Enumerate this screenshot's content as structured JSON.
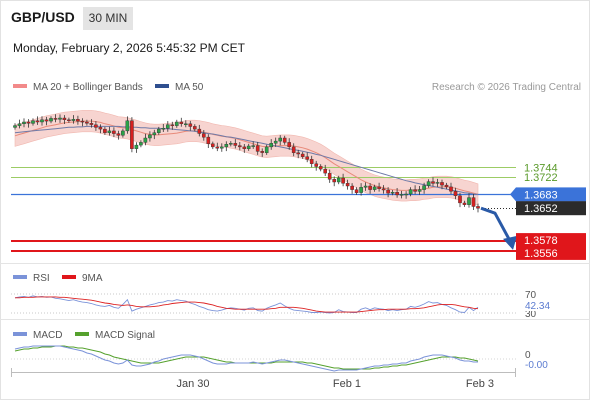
{
  "header": {
    "pair": "GBP/USD",
    "timeframe": "30 MIN",
    "datetime": "Monday, February 2, 2026 5:45:32 PM CET"
  },
  "legend": {
    "ma20": "MA 20 + Bollinger Bands",
    "ma50": "MA 50",
    "credit": "Research © 2026 Trading Central",
    "rsi": "RSI",
    "rsi_ma": "9MA",
    "macd": "MACD",
    "macd_signal": "MACD Signal"
  },
  "colors": {
    "candle_up": "#2aa248",
    "candle_down": "#d62020",
    "bollinger_fill": "#f7d4d0",
    "ma20": "#e88a7a",
    "ma50": "#6e7aa8",
    "resistance": "#9ccc65",
    "pivot": "#3b73d9",
    "support": "#e0161b",
    "last_price": "#2b2b2b",
    "forecast_arrow": "#2a5aa7",
    "rsi_line": "#7b93d9",
    "rsi_ma_line": "#dd2222",
    "macd_line": "#7b93d9",
    "macd_signal_line": "#55a12d"
  },
  "levels": {
    "resistance": [
      "1.3744",
      "1.3722"
    ],
    "pivot": "1.3683",
    "last": "1.3652",
    "support": [
      "1.3578",
      "1.3556"
    ]
  },
  "x_axis": {
    "ticks": [
      "Jan 30",
      "Feb 1",
      "Feb 3"
    ]
  },
  "rsi": {
    "levels": [
      "70",
      "30"
    ],
    "current": "42.34"
  },
  "macd": {
    "zero": "0",
    "current": "-0.00"
  },
  "chart_data": {
    "type": "candlestick",
    "instrument": "GBP/USD",
    "timeframe": "30 MIN",
    "ylim": [
      1.354,
      1.39
    ],
    "closes": [
      1.3838,
      1.3842,
      1.3846,
      1.3843,
      1.3849,
      1.3846,
      1.3851,
      1.3848,
      1.3854,
      1.3852,
      1.3855,
      1.3851,
      1.3849,
      1.3852,
      1.3848,
      1.3846,
      1.3843,
      1.384,
      1.3834,
      1.383,
      1.3822,
      1.3826,
      1.382,
      1.3816,
      1.3826,
      1.3849,
      1.3786,
      1.3794,
      1.38,
      1.381,
      1.3817,
      1.3822,
      1.383,
      1.3832,
      1.384,
      1.3838,
      1.3846,
      1.3842,
      1.3842,
      1.3836,
      1.383,
      1.382,
      1.3812,
      1.3797,
      1.379,
      1.3787,
      1.379,
      1.3796,
      1.3798,
      1.3793,
      1.379,
      1.3786,
      1.3792,
      1.3793,
      1.378,
      1.3777,
      1.379,
      1.3798,
      1.3803,
      1.381,
      1.38,
      1.379,
      1.3777,
      1.3774,
      1.3768,
      1.3762,
      1.3752,
      1.3746,
      1.374,
      1.3731,
      1.3717,
      1.3711,
      1.372,
      1.3708,
      1.3702,
      1.3694,
      1.3687,
      1.3699,
      1.3702,
      1.3694,
      1.37,
      1.3696,
      1.3693,
      1.3686,
      1.3688,
      1.3682,
      1.3683,
      1.3684,
      1.3694,
      1.369,
      1.3694,
      1.3703,
      1.3712,
      1.3708,
      1.371,
      1.3704,
      1.37,
      1.369,
      1.368,
      1.3664,
      1.366,
      1.3676,
      1.3656,
      1.3652
    ],
    "ma20": [
      1.3815,
      1.3818,
      1.3821,
      1.3824,
      1.3827,
      1.383,
      1.3833,
      1.3836,
      1.3838,
      1.384,
      1.3842,
      1.3844,
      1.3845,
      1.3846,
      1.3847,
      1.3848,
      1.3848,
      1.3848,
      1.3847,
      1.3845,
      1.3842,
      1.384,
      1.3837,
      1.3834,
      1.3833,
      1.3832,
      1.3829,
      1.3826,
      1.3823,
      1.382,
      1.3818,
      1.3817,
      1.3817,
      1.3818,
      1.3819,
      1.382,
      1.3821,
      1.3823,
      1.3825,
      1.3826,
      1.3826,
      1.3825,
      1.3823,
      1.3821,
      1.3818,
      1.3816,
      1.3814,
      1.3813,
      1.3811,
      1.3809,
      1.3806,
      1.3803,
      1.38,
      1.3797,
      1.3794,
      1.3791,
      1.379,
      1.3791,
      1.3792,
      1.3793,
      1.3793,
      1.3793,
      1.3792,
      1.379,
      1.3788,
      1.3785,
      1.3781,
      1.3777,
      1.3772,
      1.3766,
      1.3759,
      1.3752,
      1.3746,
      1.374,
      1.3734,
      1.3728,
      1.3722,
      1.3716,
      1.3711,
      1.3707,
      1.3703,
      1.37,
      1.3698,
      1.3696,
      1.3694,
      1.3693,
      1.3692,
      1.3692,
      1.3693,
      1.3693,
      1.3694,
      1.3696,
      1.3697,
      1.3699,
      1.37,
      1.37,
      1.37,
      1.3699,
      1.3697,
      1.3694,
      1.3691,
      1.3689,
      1.3686,
      1.3683
    ],
    "ma50": [
      1.3822,
      1.3823,
      1.3824,
      1.3825,
      1.3826,
      1.3827,
      1.3828,
      1.3829,
      1.383,
      1.3831,
      1.3832,
      1.3833,
      1.3834,
      1.3834,
      1.3835,
      1.3835,
      1.3836,
      1.3836,
      1.3836,
      1.3836,
      1.3836,
      1.3836,
      1.3836,
      1.3836,
      1.3835,
      1.3835,
      1.3834,
      1.3834,
      1.3833,
      1.3833,
      1.3832,
      1.3832,
      1.3832,
      1.3831,
      1.3831,
      1.383,
      1.3829,
      1.3828,
      1.3827,
      1.3826,
      1.3825,
      1.3823,
      1.3822,
      1.382,
      1.3819,
      1.3817,
      1.3815,
      1.3813,
      1.3812,
      1.381,
      1.3808,
      1.3806,
      1.3804,
      1.3802,
      1.38,
      1.3798,
      1.3796,
      1.3794,
      1.3792,
      1.379,
      1.3788,
      1.3786,
      1.3784,
      1.3782,
      1.378,
      1.3778,
      1.3776,
      1.3773,
      1.3771,
      1.3768,
      1.3765,
      1.3762,
      1.3759,
      1.3756,
      1.3753,
      1.375,
      1.3747,
      1.3744,
      1.3741,
      1.3738,
      1.3735,
      1.3732,
      1.3729,
      1.3726,
      1.3723,
      1.372,
      1.3717,
      1.3714,
      1.3712,
      1.3709,
      1.3707,
      1.3705,
      1.3703,
      1.3701,
      1.3699,
      1.3697,
      1.3695,
      1.3693,
      1.3691,
      1.3689,
      1.3687,
      1.3686,
      1.3684,
      1.3683
    ],
    "bollinger_width": 0.0024,
    "forecast_target": 1.3565,
    "rsi_values": [
      62,
      64,
      65,
      63,
      66,
      64,
      65,
      63,
      64,
      61,
      60,
      58,
      56,
      58,
      55,
      53,
      52,
      50,
      47,
      45,
      44,
      46,
      42,
      40,
      48,
      58,
      34,
      38,
      41,
      44,
      47,
      49,
      52,
      53,
      56,
      55,
      58,
      56,
      55,
      51,
      48,
      44,
      41,
      37,
      35,
      34,
      36,
      39,
      41,
      40,
      38,
      36,
      40,
      41,
      35,
      34,
      40,
      44,
      47,
      51,
      45,
      40,
      36,
      35,
      34,
      33,
      31,
      31,
      32,
      31,
      30,
      31,
      37,
      33,
      32,
      31,
      31,
      38,
      41,
      37,
      41,
      39,
      38,
      35,
      37,
      35,
      37,
      38,
      44,
      42,
      45,
      49,
      54,
      51,
      52,
      48,
      46,
      41,
      37,
      32,
      31,
      42,
      35,
      42
    ],
    "rsi_ma_values": [
      62,
      62,
      63,
      63,
      63,
      64,
      64,
      64,
      64,
      64,
      63,
      63,
      62,
      61,
      60,
      59,
      58,
      57,
      55,
      53,
      51,
      50,
      48,
      47,
      46,
      47,
      46,
      44,
      43,
      43,
      43,
      44,
      45,
      47,
      48,
      50,
      51,
      52,
      53,
      53,
      53,
      52,
      51,
      49,
      47,
      44,
      42,
      40,
      39,
      38,
      38,
      38,
      38,
      38,
      38,
      38,
      38,
      39,
      40,
      42,
      42,
      42,
      42,
      41,
      40,
      38,
      36,
      34,
      33,
      32,
      32,
      32,
      32,
      32,
      32,
      32,
      32,
      33,
      34,
      35,
      36,
      37,
      37,
      38,
      38,
      38,
      38,
      38,
      39,
      39,
      40,
      41,
      43,
      45,
      47,
      48,
      48,
      48,
      47,
      45,
      43,
      42,
      40,
      39
    ],
    "macd_values": [
      0.001,
      0.0011,
      0.0012,
      0.0012,
      0.0013,
      0.0013,
      0.0013,
      0.0013,
      0.0013,
      0.0013,
      0.0013,
      0.0012,
      0.0011,
      0.001,
      0.0009,
      0.0008,
      0.0006,
      0.0005,
      0.0003,
      0.0001,
      -0.0001,
      -0.0002,
      -0.0004,
      -0.0005,
      -0.0004,
      -0.0001,
      -0.0006,
      -0.0007,
      -0.0007,
      -0.0006,
      -0.0005,
      -0.0003,
      -0.0002,
      0.0,
      0.0001,
      0.0002,
      0.0003,
      0.0004,
      0.0004,
      0.0004,
      0.0003,
      0.0002,
      0.0,
      -0.0002,
      -0.0004,
      -0.0005,
      -0.0005,
      -0.0005,
      -0.0004,
      -0.0004,
      -0.0004,
      -0.0004,
      -0.0004,
      -0.0003,
      -0.0004,
      -0.0005,
      -0.0004,
      -0.0003,
      -0.0002,
      -0.0001,
      -0.0001,
      -0.0002,
      -0.0003,
      -0.0004,
      -0.0005,
      -0.0006,
      -0.0007,
      -0.0008,
      -0.0009,
      -0.001,
      -0.0011,
      -0.0012,
      -0.0011,
      -0.0011,
      -0.0011,
      -0.0011,
      -0.0011,
      -0.001,
      -0.0009,
      -0.0008,
      -0.0007,
      -0.0007,
      -0.0006,
      -0.0006,
      -0.0005,
      -0.0005,
      -0.0004,
      -0.0004,
      -0.0002,
      -0.0001,
      0.0,
      0.0002,
      0.0003,
      0.0004,
      0.0004,
      0.0004,
      0.0003,
      0.0002,
      0.0001,
      -0.0001,
      -0.0002,
      -0.0002,
      -0.0003,
      -0.0003
    ],
    "macd_signal_values": [
      0.0008,
      0.0009,
      0.001,
      0.001,
      0.0011,
      0.0011,
      0.0012,
      0.0012,
      0.0012,
      0.0013,
      0.0013,
      0.0013,
      0.0012,
      0.0012,
      0.0011,
      0.0011,
      0.001,
      0.0009,
      0.0008,
      0.0007,
      0.0005,
      0.0004,
      0.0002,
      0.0001,
      0.0,
      -0.0001,
      -0.0002,
      -0.0003,
      -0.0004,
      -0.0004,
      -0.0004,
      -0.0004,
      -0.0004,
      -0.0003,
      -0.0002,
      -0.0001,
      0.0,
      0.0001,
      0.0002,
      0.0002,
      0.0002,
      0.0002,
      0.0002,
      0.0001,
      0.0,
      -0.0001,
      -0.0002,
      -0.0003,
      -0.0003,
      -0.0004,
      -0.0004,
      -0.0004,
      -0.0004,
      -0.0004,
      -0.0004,
      -0.0004,
      -0.0004,
      -0.0004,
      -0.0003,
      -0.0003,
      -0.0003,
      -0.0003,
      -0.0003,
      -0.0003,
      -0.0003,
      -0.0004,
      -0.0004,
      -0.0005,
      -0.0006,
      -0.0007,
      -0.0008,
      -0.0009,
      -0.0009,
      -0.001,
      -0.001,
      -0.001,
      -0.001,
      -0.001,
      -0.001,
      -0.001,
      -0.0009,
      -0.0009,
      -0.0008,
      -0.0008,
      -0.0007,
      -0.0007,
      -0.0006,
      -0.0006,
      -0.0005,
      -0.0004,
      -0.0003,
      -0.0002,
      -0.0001,
      0.0,
      0.0001,
      0.0002,
      0.0002,
      0.0002,
      0.0002,
      0.0001,
      0.0001,
      0.0,
      -0.0001,
      -0.0002
    ]
  }
}
